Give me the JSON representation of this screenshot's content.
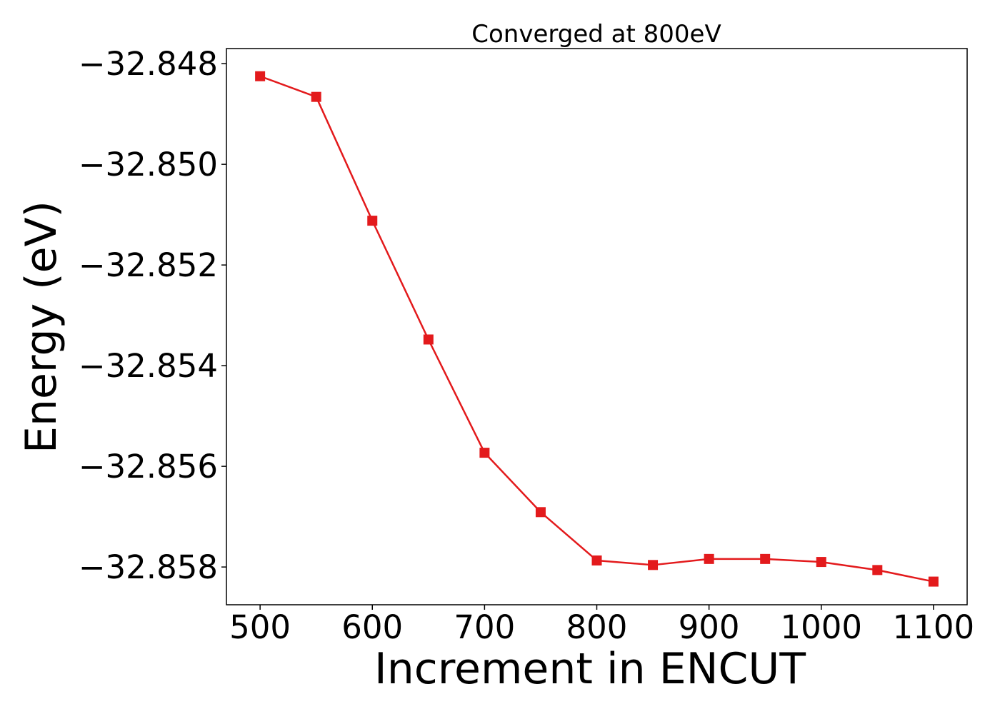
{
  "chart_data": {
    "type": "line",
    "title": "Converged at 800eV",
    "xlabel": "Increment in ENCUT",
    "ylabel": "Energy (eV)",
    "x": [
      500,
      550,
      600,
      650,
      700,
      750,
      800,
      850,
      900,
      950,
      1000,
      1050,
      1100
    ],
    "x_ticks": [
      500,
      600,
      700,
      800,
      900,
      1000,
      1100
    ],
    "x_tick_labels": [
      "500",
      "600",
      "700",
      "800",
      "900",
      "1000",
      "1100"
    ],
    "y_ticks": [
      -32.848,
      -32.85,
      -32.852,
      -32.854,
      -32.856,
      -32.858
    ],
    "y_tick_labels": [
      "−32.848",
      "−32.850",
      "−32.852",
      "−32.854",
      "−32.856",
      "−32.858"
    ],
    "xlim": [
      470,
      1130
    ],
    "ylim": [
      -32.85875,
      -32.8477
    ],
    "series": [
      {
        "values": [
          -32.84825,
          -32.84866,
          -32.85112,
          -32.85348,
          -32.85573,
          -32.85691,
          -32.85787,
          -32.85796,
          -32.85784,
          -32.85784,
          -32.8579,
          -32.85806,
          -32.85829
        ],
        "color": "#e31a1c",
        "marker": "square"
      }
    ],
    "grid": false,
    "legend": "none"
  }
}
